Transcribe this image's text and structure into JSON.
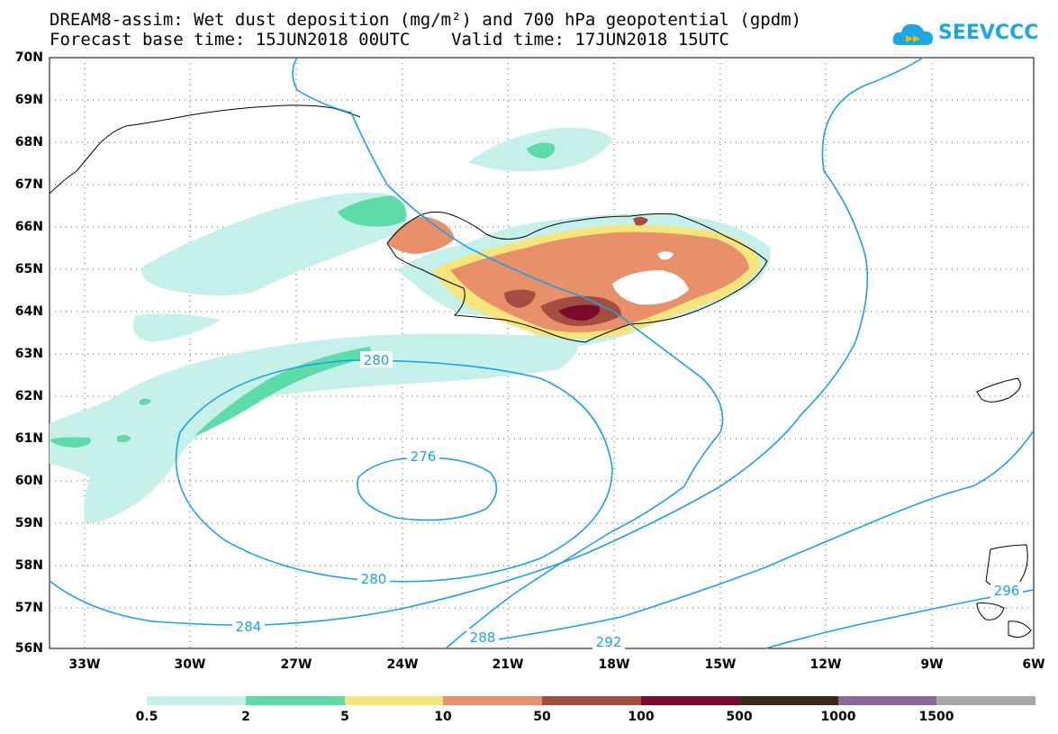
{
  "title": {
    "line1": "DREAM8-assim: Wet dust deposition (mg/m²) and 700 hPa geopotential (gpdm)",
    "line2": "Forecast base time: 15JUN2018 00UTC    Valid time: 17JUN2018 15UTC"
  },
  "logo": {
    "text": "SEEVCCC",
    "icon": "cloud-arrow-icon",
    "color": "#1aa7e8"
  },
  "axes": {
    "lat_labels": [
      "70N",
      "69N",
      "68N",
      "67N",
      "66N",
      "65N",
      "64N",
      "63N",
      "62N",
      "61N",
      "60N",
      "59N",
      "58N",
      "57N",
      "56N"
    ],
    "lon_labels": [
      "33W",
      "30W",
      "27W",
      "24W",
      "21W",
      "18W",
      "15W",
      "12W",
      "9W",
      "6W"
    ]
  },
  "contours": {
    "color": "#1ba1e6",
    "labels": [
      "280",
      "276",
      "280",
      "284",
      "288",
      "292",
      "296"
    ]
  },
  "colorbar": {
    "colors": [
      "#c5f1ea",
      "#5ddcaa",
      "#f5e57a",
      "#e8906a",
      "#a44e3f",
      "#7a0a2b",
      "#3a2a1c",
      "#8a6a9c",
      "#a8a8a8"
    ],
    "labels": [
      "0.5",
      "2",
      "5",
      "10",
      "50",
      "100",
      "500",
      "1000",
      "1500"
    ]
  }
}
